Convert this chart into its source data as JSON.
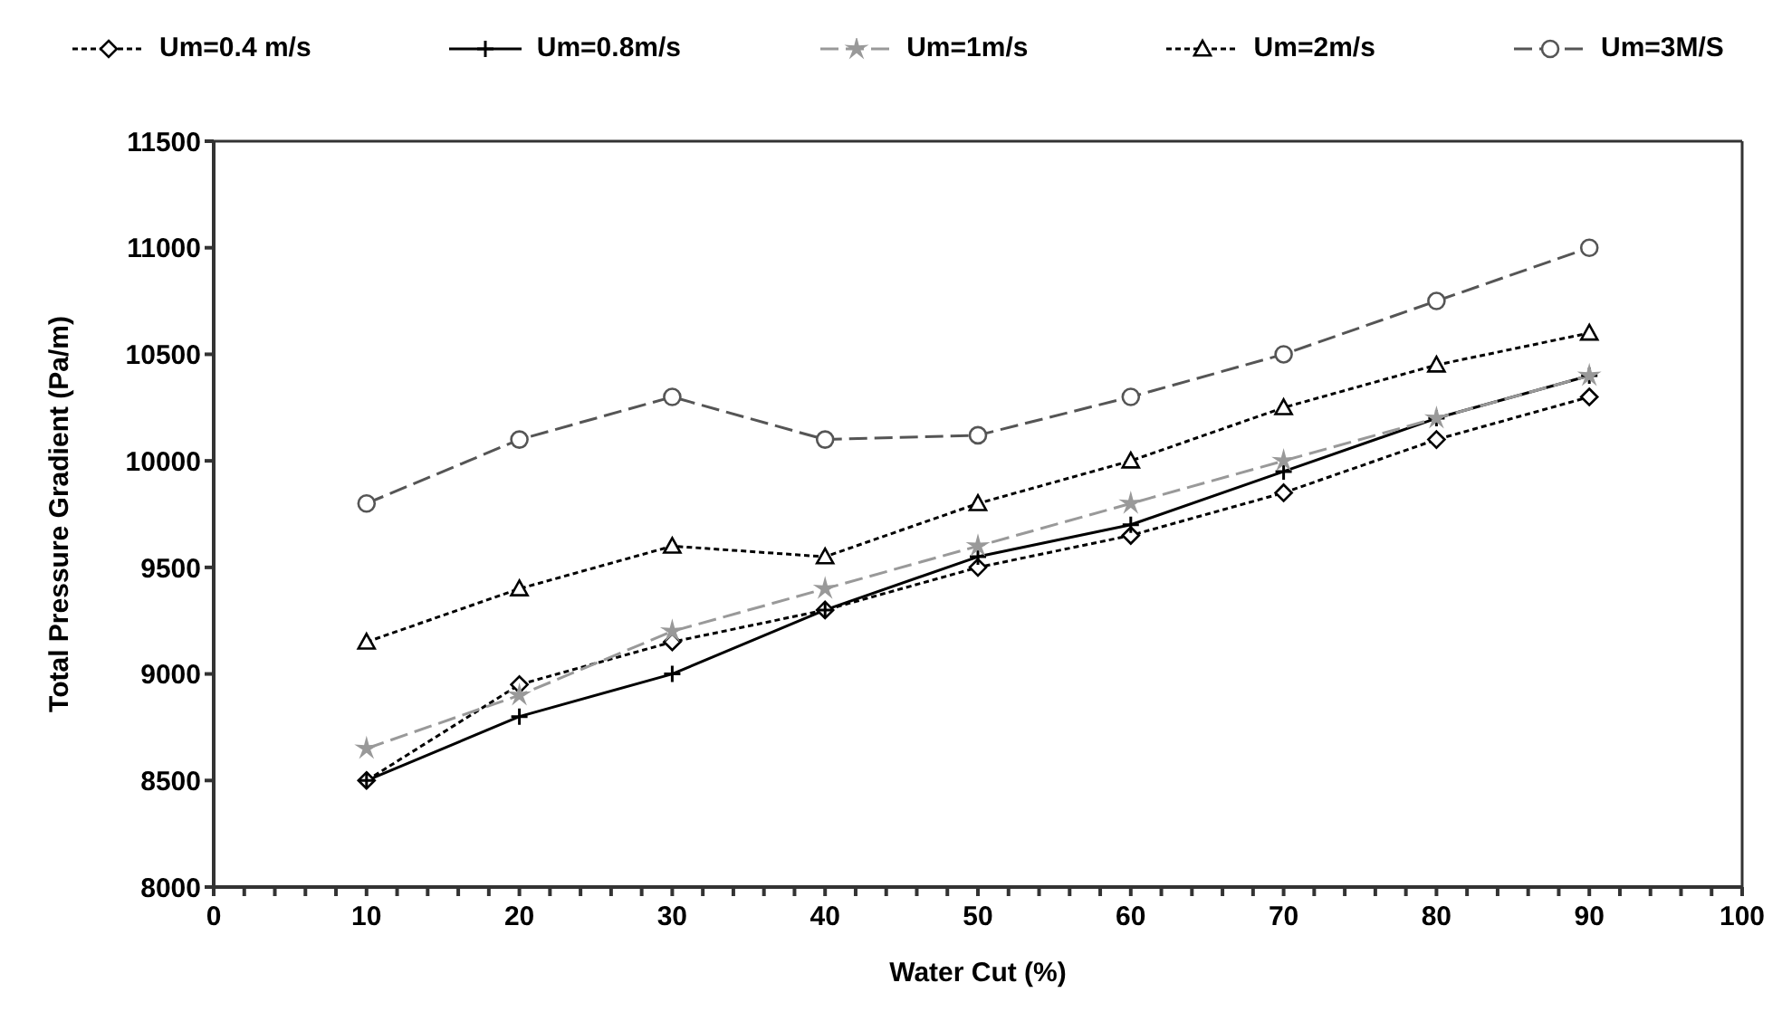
{
  "chart_data": {
    "type": "line",
    "xlabel": "Water Cut (%)",
    "ylabel": "Total Pressure Gradient (Pa/m)",
    "x": [
      10,
      20,
      30,
      40,
      50,
      60,
      70,
      80,
      90
    ],
    "series": [
      {
        "name": "Um=0.4 m/s",
        "color": "#000000",
        "marker": "diamond",
        "line_style": "dotted",
        "values": [
          8500,
          8950,
          9150,
          9300,
          9500,
          9650,
          9850,
          10100,
          10300
        ]
      },
      {
        "name": "Um=0.8m/s",
        "color": "#000000",
        "marker": "cross",
        "line_style": "solid",
        "values": [
          8500,
          8800,
          9000,
          9300,
          9550,
          9700,
          9950,
          10200,
          10400
        ]
      },
      {
        "name": "Um=1m/s",
        "color": "#999999",
        "marker": "star",
        "line_style": "dashed",
        "values": [
          8650,
          8900,
          9200,
          9400,
          9600,
          9800,
          10000,
          10200,
          10400
        ]
      },
      {
        "name": "Um=2m/s",
        "color": "#000000",
        "marker": "triangle",
        "line_style": "dotted",
        "values": [
          9150,
          9400,
          9600,
          9550,
          9800,
          10000,
          10250,
          10450,
          10600
        ]
      },
      {
        "name": "Um=3M/S",
        "color": "#555555",
        "marker": "circle",
        "line_style": "dashed",
        "values": [
          9800,
          10100,
          10300,
          10100,
          10120,
          10300,
          10500,
          10750,
          11000
        ]
      }
    ],
    "xlim": [
      0,
      100
    ],
    "xticks": [
      0,
      {
        "value": 2,
        "label": null
      },
      {
        "value": 4,
        "label": null
      },
      {
        "value": 6,
        "label": null
      },
      {
        "value": 8,
        "label": null
      },
      10,
      {
        "value": 12,
        "label": null
      },
      {
        "value": 14,
        "label": null
      },
      {
        "value": 16,
        "label": null
      },
      {
        "value": 18,
        "label": null
      },
      20,
      {
        "value": 22,
        "label": null
      },
      {
        "value": 24,
        "label": null
      },
      {
        "value": 26,
        "label": null
      },
      {
        "value": 28,
        "label": null
      },
      30,
      {
        "value": 32,
        "label": null
      },
      {
        "value": 34,
        "label": null
      },
      {
        "value": 36,
        "label": null
      },
      {
        "value": 38,
        "label": null
      },
      40,
      {
        "value": 42,
        "label": null
      },
      {
        "value": 44,
        "label": null
      },
      {
        "value": 46,
        "label": null
      },
      {
        "value": 48,
        "label": null
      },
      50,
      {
        "value": 52,
        "label": null
      },
      {
        "value": 54,
        "label": null
      },
      {
        "value": 56,
        "label": null
      },
      {
        "value": 58,
        "label": null
      },
      60,
      {
        "value": 62,
        "label": null
      },
      {
        "value": 64,
        "label": null
      },
      {
        "value": 66,
        "label": null
      },
      {
        "value": 68,
        "label": null
      },
      70,
      {
        "value": 72,
        "label": null
      },
      {
        "value": 74,
        "label": null
      },
      {
        "value": 76,
        "label": null
      },
      {
        "value": 78,
        "label": null
      },
      80,
      {
        "value": 82,
        "label": null
      },
      {
        "value": 84,
        "label": null
      },
      {
        "value": 86,
        "label": null
      },
      {
        "value": 88,
        "label": null
      },
      90,
      {
        "value": 92,
        "label": null
      },
      {
        "value": 94,
        "label": null
      },
      {
        "value": 96,
        "label": null
      },
      {
        "value": 98,
        "label": null
      },
      100
    ],
    "ylim": [
      8000,
      11500
    ],
    "yticks": [
      8000,
      8500,
      9000,
      9500,
      10000,
      10500,
      11000,
      11500
    ],
    "grid": false,
    "legend": "top"
  }
}
